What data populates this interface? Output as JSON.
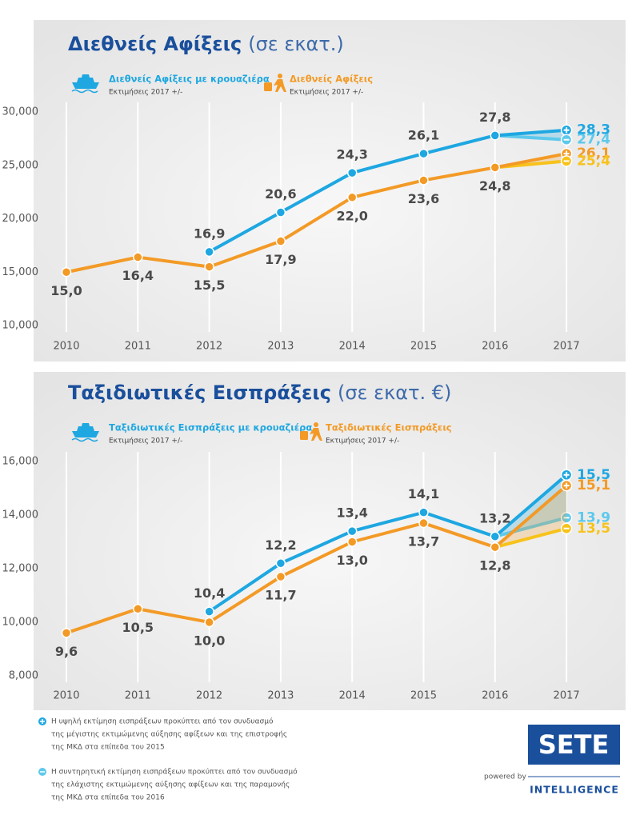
{
  "chart_data": [
    {
      "type": "line",
      "title": "Διεθνείς Αφίξεις",
      "title_unit": "(σε εκατ.)",
      "categories": [
        "2010",
        "2011",
        "2012",
        "2013",
        "2014",
        "2015",
        "2016",
        "2017"
      ],
      "ylim": [
        10000,
        30000
      ],
      "yticks": [
        {
          "value": 10000,
          "label": "10,000"
        },
        {
          "value": 15000,
          "label": "15,000"
        },
        {
          "value": 20000,
          "label": "20,000"
        },
        {
          "value": 25000,
          "label": "25,000"
        },
        {
          "value": 30000,
          "label": "30,000"
        }
      ],
      "grid": true,
      "series": [
        {
          "name": "Διεθνείς Αφίξεις με κρουαζιέρα",
          "note": "Εκτιμήσεις 2017 +/-",
          "color": "#1ea7e1",
          "values": [
            null,
            null,
            16900,
            20600,
            24300,
            26100,
            27800,
            null
          ],
          "value_labels": [
            null,
            null,
            "16,9",
            "20,6",
            "24,3",
            "26,1",
            "27,8",
            null
          ],
          "estimate": {
            "high": 28300,
            "high_label": "28,3",
            "high_color": "#1ea7e1",
            "low": 27400,
            "low_label": "27,4",
            "low_color": "#5dc9ec"
          }
        },
        {
          "name": "Διεθνείς Αφίξεις",
          "note": "Εκτιμήσεις 2017 +/-",
          "color": "#f39a26",
          "values": [
            15000,
            16400,
            15500,
            17900,
            22000,
            23600,
            24800,
            null
          ],
          "value_labels": [
            "15,0",
            "16,4",
            "15,5",
            "17,9",
            "22,0",
            "23,6",
            "24,8",
            null
          ],
          "estimate": {
            "high": 26100,
            "high_label": "26,1",
            "high_color": "#f39a26",
            "low": 25400,
            "low_label": "25,4",
            "low_color": "#f7c21b"
          }
        }
      ]
    },
    {
      "type": "line",
      "title": "Ταξιδιωτικές Εισπράξεις",
      "title_unit": "(σε εκατ. €)",
      "categories": [
        "2010",
        "2011",
        "2012",
        "2013",
        "2014",
        "2015",
        "2016",
        "2017"
      ],
      "ylim": [
        8000,
        16000
      ],
      "yticks": [
        {
          "value": 8000,
          "label": "8,000"
        },
        {
          "value": 10000,
          "label": "10,000"
        },
        {
          "value": 12000,
          "label": "12,000"
        },
        {
          "value": 14000,
          "label": "14,000"
        },
        {
          "value": 16000,
          "label": "16,000"
        }
      ],
      "grid": true,
      "series": [
        {
          "name": "Ταξιδιωτικές Εισπράξεις με κρουαζιέρα",
          "note": "Εκτιμήσεις 2017 +/-",
          "color": "#1ea7e1",
          "values": [
            null,
            null,
            10400,
            12200,
            13400,
            14100,
            13200,
            null
          ],
          "value_labels": [
            null,
            null,
            "10,4",
            "12,2",
            "13,4",
            "14,1",
            "13,2",
            null
          ],
          "estimate": {
            "high": 15500,
            "high_label": "15,5",
            "high_color": "#1ea7e1",
            "low": 13900,
            "low_label": "13,9",
            "low_color": "#5dc9ec"
          }
        },
        {
          "name": "Ταξιδιωτικές Εισπράξεις",
          "note": "Εκτιμήσεις 2017 +/-",
          "color": "#f39a26",
          "values": [
            9600,
            10500,
            10000,
            11700,
            13000,
            13700,
            12800,
            null
          ],
          "value_labels": [
            "9,6",
            "10,5",
            "10,0",
            "11,7",
            "13,0",
            "13,7",
            "12,8",
            null
          ],
          "estimate": {
            "high": 15100,
            "high_label": "15,1",
            "high_color": "#f39a26",
            "low": 13500,
            "low_label": "13,5",
            "low_color": "#f7c21b"
          }
        }
      ]
    }
  ],
  "footnotes": [
    [
      "Η υψηλή εκτίμηση εισπράξεων προκύπτει από τον συνδυασμό",
      "της μέγιστης εκτιμώμενης αύξησης αφίξεων και της επιστροφής",
      "της ΜΚΔ στα επίπεδα του 2015"
    ],
    [
      "Η συντηρητική εκτίμηση εισπράξεων προκύπτει από τον συνδυασμό",
      "της ελάχιστης εκτιμώμενης αύξησης αφίξεων και της παραμονής",
      "της ΜΚΔ στα επίπεδα του 2016"
    ]
  ],
  "logo": {
    "name": "SETE",
    "tagline": "powered by",
    "unit": "INTELLIGENCE"
  }
}
